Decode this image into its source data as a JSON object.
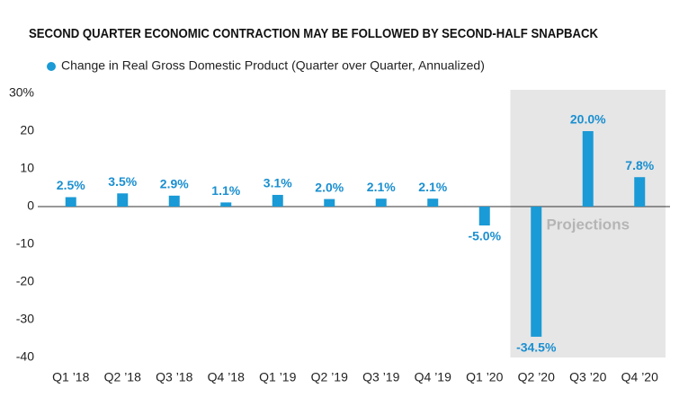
{
  "chart_data": {
    "type": "bar",
    "title": "SECOND QUARTER ECONOMIC CONTRACTION MAY BE FOLLOWED BY SECOND-HALF SNAPBACK",
    "legend_note": "(Quarter over Quarter, Annualized)",
    "categories": [
      "Q1 ’18",
      "Q2 ’18",
      "Q3 ’18",
      "Q4 ’18",
      "Q1 ’19",
      "Q2 ’19",
      "Q3 ’19",
      "Q4 ’19",
      "Q1 ’20",
      "Q2 ’20",
      "Q3 ’20",
      "Q4 ’20"
    ],
    "series": [
      {
        "name": "Change in Real Gross Domestic Product",
        "color": "#1a9ad6",
        "values": [
          2.5,
          3.5,
          2.9,
          1.1,
          3.1,
          2.0,
          2.1,
          2.1,
          -5.0,
          -34.5,
          20.0,
          7.8
        ],
        "value_labels": [
          "2.5%",
          "3.5%",
          "2.9%",
          "1.1%",
          "3.1%",
          "2.0%",
          "2.1%",
          "2.1%",
          "-5.0%",
          "-34.5%",
          "20.0%",
          "7.8%"
        ]
      }
    ],
    "ylim": [
      -40,
      30
    ],
    "yticks": [
      {
        "value": 30,
        "label": "30%"
      },
      20,
      10,
      0,
      -10,
      -20,
      -30,
      -40
    ],
    "grid": false,
    "projection": {
      "label": "Projections",
      "start": "Q2 ’20",
      "color": "#e6e6e6"
    }
  }
}
